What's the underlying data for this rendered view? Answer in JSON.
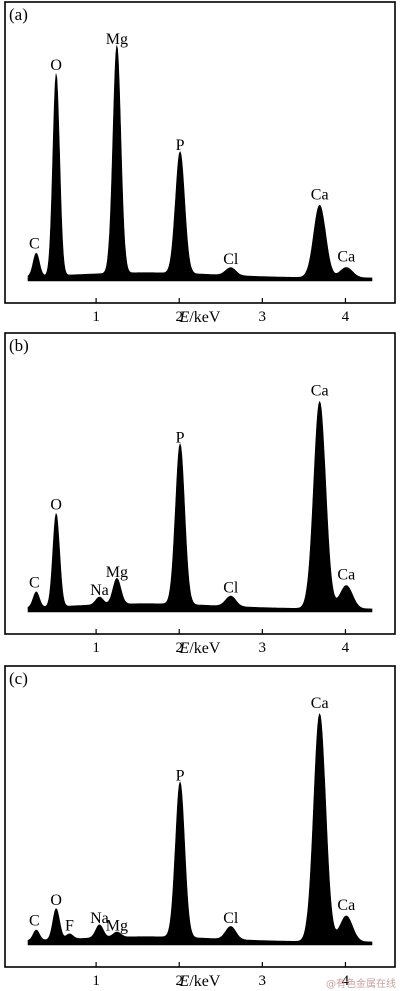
{
  "watermark": "@有色金属在线",
  "chart_data": [
    {
      "type": "area",
      "panel_label": "(a)",
      "xlabel_var": "E",
      "xlabel_unit": "/keV",
      "xlim": [
        0,
        4.5
      ],
      "xticks": [
        "1",
        "2",
        "3",
        "4"
      ],
      "peaks": [
        {
          "element": "C",
          "energy": 0.28,
          "intensity": 0.09
        },
        {
          "element": "O",
          "energy": 0.52,
          "intensity": 0.78
        },
        {
          "element": "Mg",
          "energy": 1.25,
          "intensity": 0.88
        },
        {
          "element": "P",
          "energy": 2.01,
          "intensity": 0.47
        },
        {
          "element": "Cl",
          "energy": 2.62,
          "intensity": 0.03
        },
        {
          "element": "Ca",
          "energy": 3.69,
          "intensity": 0.28
        },
        {
          "element": "Ca",
          "energy": 4.01,
          "intensity": 0.04
        }
      ]
    },
    {
      "type": "area",
      "panel_label": "(b)",
      "xlabel_var": "E",
      "xlabel_unit": "/keV",
      "xlim": [
        0,
        4.5
      ],
      "xticks": [
        "1",
        "2",
        "3",
        "4"
      ],
      "peaks": [
        {
          "element": "C",
          "energy": 0.28,
          "intensity": 0.06
        },
        {
          "element": "O",
          "energy": 0.52,
          "intensity": 0.36
        },
        {
          "element": "Na",
          "energy": 1.04,
          "intensity": 0.03
        },
        {
          "element": "Mg",
          "energy": 1.25,
          "intensity": 0.1
        },
        {
          "element": "P",
          "energy": 2.01,
          "intensity": 0.62
        },
        {
          "element": "Cl",
          "energy": 2.62,
          "intensity": 0.04
        },
        {
          "element": "Ca",
          "energy": 3.69,
          "intensity": 0.8
        },
        {
          "element": "Ca",
          "energy": 4.01,
          "intensity": 0.09
        }
      ]
    },
    {
      "type": "area",
      "panel_label": "(c)",
      "xlabel_var": "E",
      "xlabel_unit": "/keV",
      "xlim": [
        0,
        4.5
      ],
      "xticks": [
        "1",
        "2",
        "3",
        "4"
      ],
      "peaks": [
        {
          "element": "C",
          "energy": 0.28,
          "intensity": 0.04
        },
        {
          "element": "O",
          "energy": 0.52,
          "intensity": 0.12
        },
        {
          "element": "F",
          "energy": 0.68,
          "intensity": 0.02
        },
        {
          "element": "Na",
          "energy": 1.04,
          "intensity": 0.05
        },
        {
          "element": "Mg",
          "energy": 1.25,
          "intensity": 0.02
        },
        {
          "element": "P",
          "energy": 2.01,
          "intensity": 0.6
        },
        {
          "element": "Cl",
          "energy": 2.62,
          "intensity": 0.05
        },
        {
          "element": "Ca",
          "energy": 3.69,
          "intensity": 0.88
        },
        {
          "element": "Ca",
          "energy": 4.01,
          "intensity": 0.1
        }
      ]
    }
  ]
}
